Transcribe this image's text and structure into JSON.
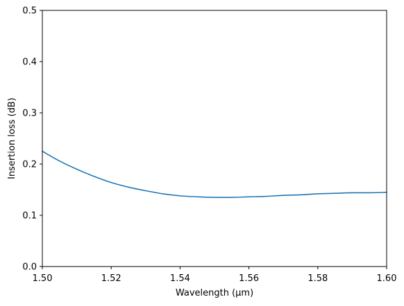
{
  "chart_data": {
    "type": "line",
    "title": "",
    "xlabel": "Wavelength (μm)",
    "ylabel": "Insertion loss (dB)",
    "xlim": [
      1.5,
      1.6
    ],
    "ylim": [
      0.0,
      0.5
    ],
    "x_ticks": [
      "1.50",
      "1.52",
      "1.54",
      "1.56",
      "1.58",
      "1.60"
    ],
    "y_ticks": [
      "0.0",
      "0.1",
      "0.2",
      "0.3",
      "0.4",
      "0.5"
    ],
    "grid": false,
    "legend": "none",
    "series": [
      {
        "color": "#1f77b4",
        "x": [
          1.5,
          1.505,
          1.51,
          1.515,
          1.52,
          1.525,
          1.53,
          1.535,
          1.54,
          1.545,
          1.55,
          1.555,
          1.56,
          1.565,
          1.57,
          1.575,
          1.58,
          1.585,
          1.59,
          1.595,
          1.6
        ],
        "y": [
          0.225,
          0.206,
          0.19,
          0.176,
          0.164,
          0.155,
          0.148,
          0.142,
          0.138,
          0.136,
          0.135,
          0.135,
          0.136,
          0.137,
          0.139,
          0.14,
          0.142,
          0.143,
          0.144,
          0.144,
          0.145
        ]
      }
    ]
  }
}
